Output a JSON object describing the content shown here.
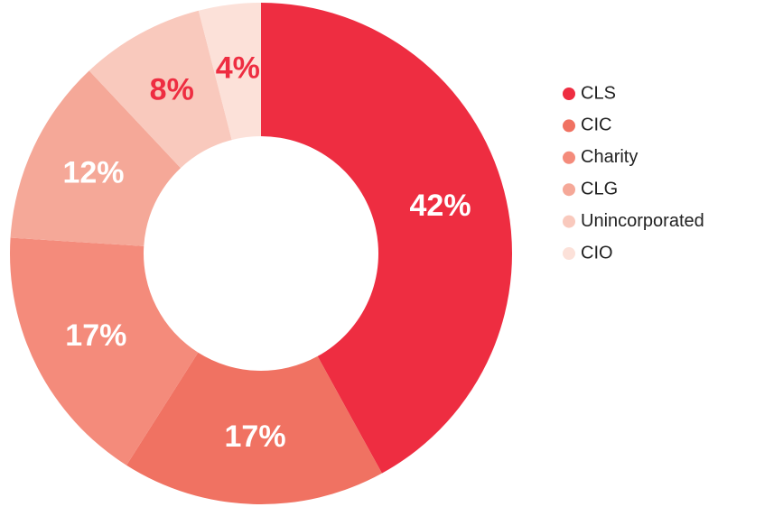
{
  "chart_data": {
    "type": "pie",
    "categories": [
      "CLS",
      "CIC",
      "Charity",
      "CLG",
      "Unincorporated",
      "CIO"
    ],
    "values": [
      42,
      17,
      17,
      12,
      8,
      4
    ],
    "value_labels": [
      "42%",
      "17%",
      "17%",
      "12%",
      "8%",
      "4%"
    ],
    "colors": [
      "#ee2d41",
      "#f07262",
      "#f48b7b",
      "#f5a898",
      "#f9c9bd",
      "#fce1d9"
    ],
    "legend": "right"
  }
}
